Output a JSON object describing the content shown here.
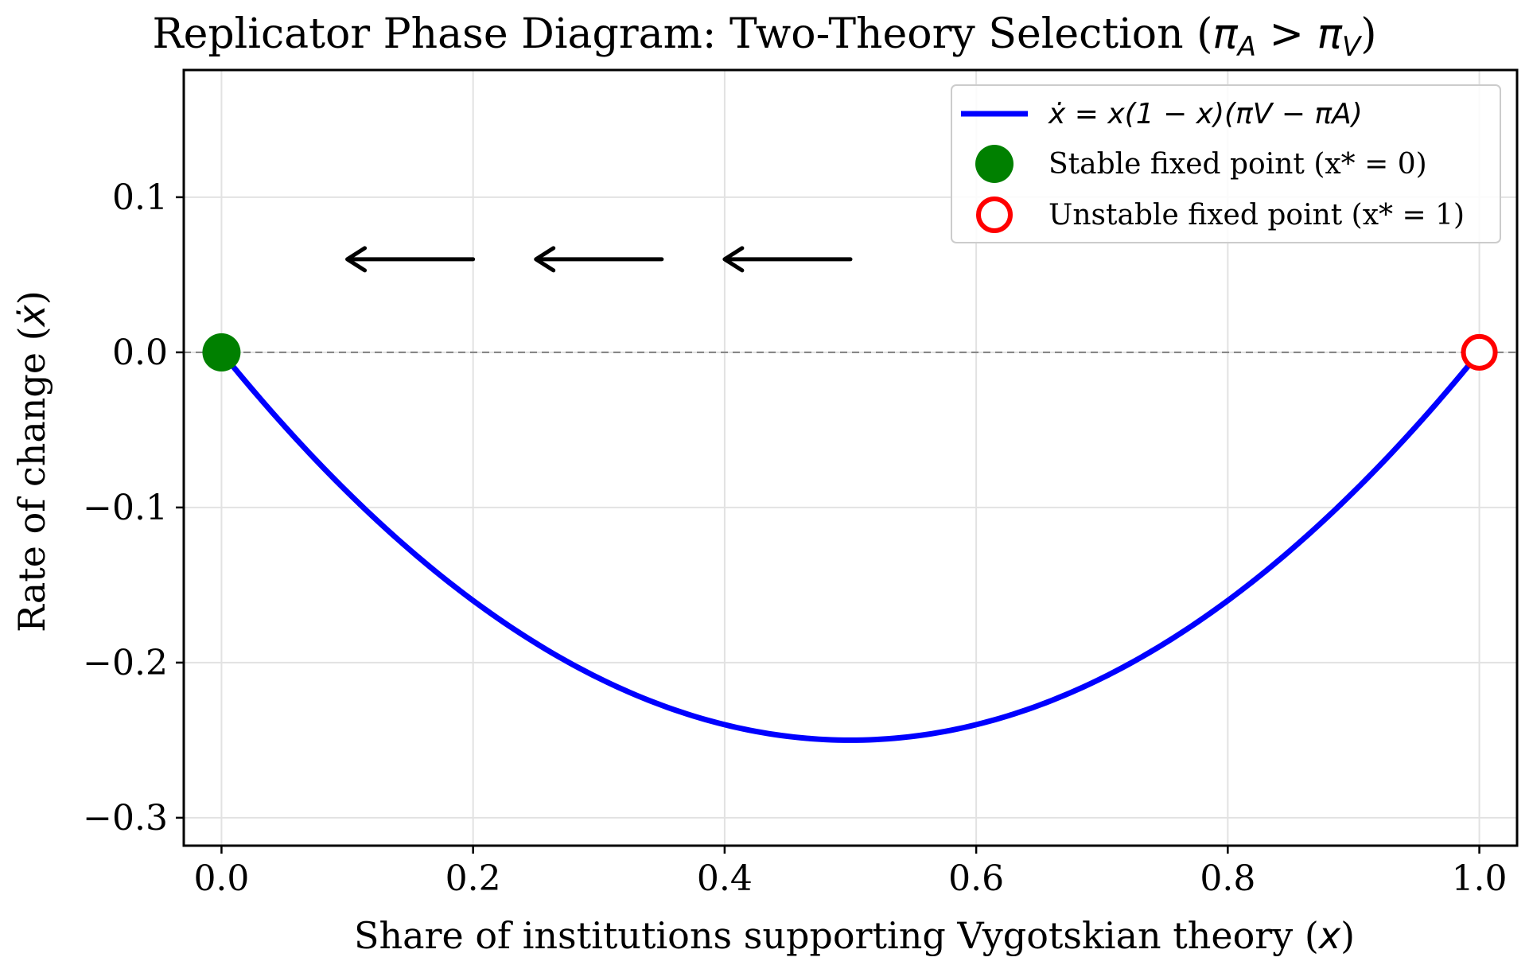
{
  "chart_data": {
    "type": "line",
    "title": "Replicator Phase Diagram: Two-Theory Selection (πA > πV)",
    "title_parts": {
      "text": "Replicator Phase Diagram: Two-Theory Selection ",
      "open": "(",
      "pi": "π",
      "sub_a": "A",
      "gt": " > ",
      "sub_v": "V",
      "close": ")"
    },
    "xlabel": "Share of institutions supporting Vygotskian theory (x)",
    "xlabel_parts": {
      "text": "Share of institutions supporting Vygotskian theory (",
      "var": "x",
      "close": ")"
    },
    "ylabel": "Rate of change (ẋ)",
    "ylabel_parts": {
      "text": "Rate of change (",
      "var": "ẋ",
      "close": ")"
    },
    "xlim": [
      -0.03,
      1.03
    ],
    "ylim": [
      -0.318,
      0.182
    ],
    "xticks": [
      0.0,
      0.2,
      0.4,
      0.6,
      0.8,
      1.0
    ],
    "xtick_labels": [
      "0.0",
      "0.2",
      "0.4",
      "0.6",
      "0.8",
      "1.0"
    ],
    "yticks": [
      0.1,
      0.0,
      -0.1,
      -0.2,
      -0.3
    ],
    "ytick_labels": [
      "0.1",
      "0.0",
      "−0.1",
      "−0.2",
      "−0.3"
    ],
    "grid": true,
    "legend_position": "top-right",
    "zero_line": {
      "y": 0,
      "style": "dashed",
      "color": "#808080"
    },
    "series": [
      {
        "name": "ẋ = x(1 − x)(πV − πA)",
        "style": "line",
        "color": "#0000ff",
        "x": [
          0.0,
          0.05,
          0.1,
          0.15,
          0.2,
          0.25,
          0.3,
          0.35,
          0.4,
          0.45,
          0.5,
          0.55,
          0.6,
          0.65,
          0.7,
          0.75,
          0.8,
          0.85,
          0.9,
          0.95,
          1.0
        ],
        "y": [
          0.0,
          -0.0475,
          -0.09,
          -0.1275,
          -0.16,
          -0.1875,
          -0.21,
          -0.2275,
          -0.24,
          -0.2475,
          -0.25,
          -0.2475,
          -0.24,
          -0.2275,
          -0.21,
          -0.1875,
          -0.16,
          -0.1275,
          -0.09,
          -0.0475,
          0.0
        ]
      },
      {
        "name": "Stable fixed point (x* = 0)",
        "style": "filled-marker",
        "color": "#008000",
        "x": [
          0.0
        ],
        "y": [
          0.0
        ]
      },
      {
        "name": "Unstable fixed point (x* = 1)",
        "style": "open-marker",
        "color": "#ff0000",
        "x": [
          1.0
        ],
        "y": [
          0.0
        ]
      }
    ],
    "legend": [
      {
        "kind": "line",
        "color": "#0000ff",
        "label": "ẋ = x(1 − x)(πV − πA)"
      },
      {
        "kind": "filled-marker",
        "color": "#008000",
        "label": "Stable fixed point (x* = 0)"
      },
      {
        "kind": "open-marker",
        "color": "#ff0000",
        "label": "Unstable fixed point (x* = 1)"
      }
    ],
    "annotations": [
      {
        "type": "arrow",
        "direction": "left",
        "from": [
          0.5,
          0.06
        ],
        "to": [
          0.4,
          0.06
        ]
      },
      {
        "type": "arrow",
        "direction": "left",
        "from": [
          0.35,
          0.06
        ],
        "to": [
          0.25,
          0.06
        ]
      },
      {
        "type": "arrow",
        "direction": "left",
        "from": [
          0.2,
          0.06
        ],
        "to": [
          0.1,
          0.06
        ]
      }
    ]
  }
}
